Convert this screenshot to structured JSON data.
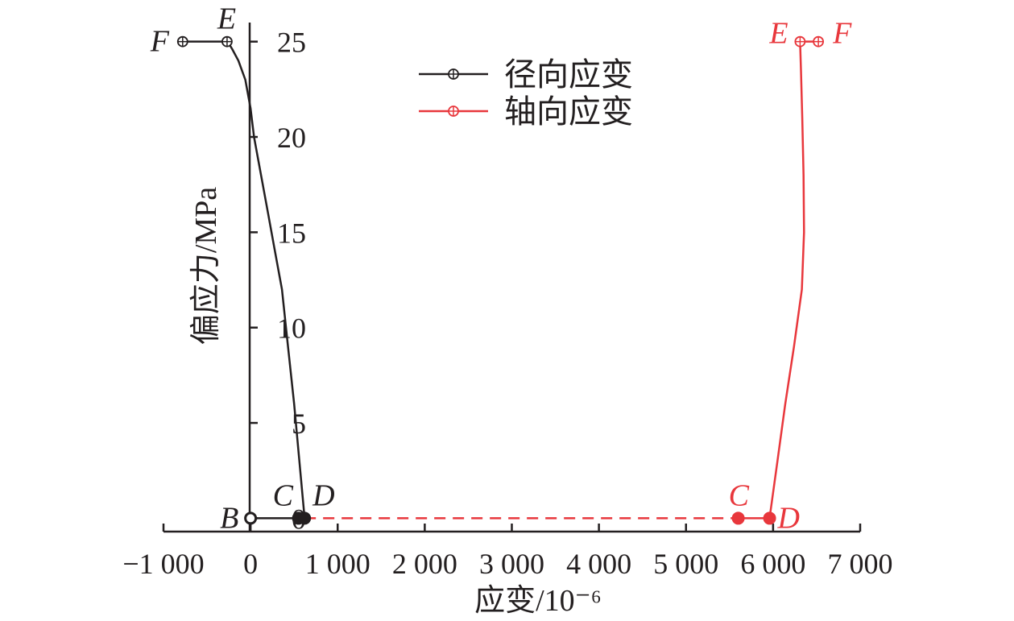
{
  "chart_data": {
    "type": "line",
    "title": "",
    "xlabel": "应变/10⁻⁶",
    "ylabel": "偏应力/MPa",
    "xlim": [
      -1000,
      7000
    ],
    "ylim": [
      -0.7,
      26
    ],
    "xticks": [
      -1000,
      0,
      1000,
      2000,
      3000,
      4000,
      5000,
      6000,
      7000
    ],
    "xtick_labels": [
      "−1 000",
      "0",
      "1 000",
      "2 000",
      "3 000",
      "4 000",
      "5 000",
      "6 000",
      "7 000"
    ],
    "yticks": [
      0,
      5,
      10,
      15,
      20,
      25
    ],
    "ytick_labels": [
      "0",
      "5",
      "10",
      "15",
      "20",
      "25"
    ],
    "grid": false,
    "legend_position": "top-center",
    "colors": {
      "radial": "#231f20",
      "axial": "#e8373c"
    },
    "series": [
      {
        "name": "径向应变",
        "color": "#231f20",
        "x": [
          620,
          560,
          500,
          430,
          360,
          280,
          200,
          120,
          40,
          0,
          -60,
          -140,
          -210,
          -250,
          -270
        ],
        "y": [
          0,
          3,
          6,
          9,
          12,
          14,
          16,
          18,
          20,
          21.5,
          23,
          24,
          24.6,
          24.9,
          25
        ]
      },
      {
        "name": "轴向应变",
        "color": "#e8373c",
        "x": [
          5960,
          6050,
          6140,
          6240,
          6330,
          6355,
          6350,
          6335,
          6320,
          6310
        ],
        "y": [
          0,
          3,
          6,
          9,
          12,
          15,
          18,
          21,
          23.5,
          25
        ]
      }
    ],
    "segments": [
      {
        "style": "solid",
        "color": "#231f20",
        "x": [
          0,
          620
        ],
        "y": [
          0,
          0
        ]
      },
      {
        "style": "dashed",
        "color": "#e8373c",
        "x": [
          620,
          5600
        ],
        "y": [
          0,
          0
        ]
      },
      {
        "style": "solid",
        "color": "#e8373c",
        "x": [
          5600,
          5960
        ],
        "y": [
          0,
          0
        ]
      },
      {
        "style": "solid",
        "color": "#231f20",
        "x": [
          -780,
          -270
        ],
        "y": [
          25,
          25
        ]
      },
      {
        "style": "solid",
        "color": "#e8373c",
        "x": [
          6310,
          6520
        ],
        "y": [
          25,
          25
        ]
      }
    ],
    "markers": [
      {
        "label": "B",
        "x": 0,
        "y": 0,
        "shape": "open-circle",
        "color": "#231f20"
      },
      {
        "label": "C",
        "x": 550,
        "y": 0,
        "shape": "filled-circle",
        "color": "#231f20"
      },
      {
        "label": "D",
        "x": 620,
        "y": 0,
        "shape": "filled-circle",
        "color": "#231f20"
      },
      {
        "label": "E",
        "x": -270,
        "y": 25,
        "shape": "crossed-circle",
        "color": "#231f20"
      },
      {
        "label": "F",
        "x": -780,
        "y": 25,
        "shape": "crossed-circle",
        "color": "#231f20"
      },
      {
        "label": "C",
        "x": 5600,
        "y": 0,
        "shape": "filled-circle",
        "color": "#e8373c"
      },
      {
        "label": "D",
        "x": 5960,
        "y": 0,
        "shape": "filled-circle",
        "color": "#e8373c"
      },
      {
        "label": "E",
        "x": 6310,
        "y": 25,
        "shape": "crossed-circle",
        "color": "#e8373c"
      },
      {
        "label": "F",
        "x": 6520,
        "y": 25,
        "shape": "crossed-circle",
        "color": "#e8373c"
      }
    ]
  }
}
